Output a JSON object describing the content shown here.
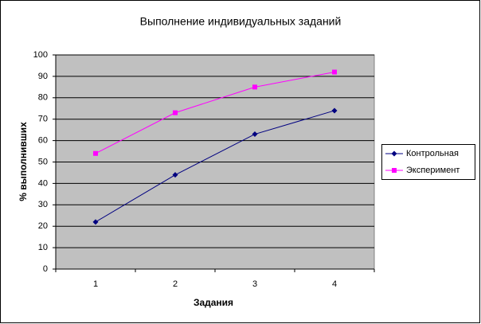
{
  "chart_data": {
    "type": "line",
    "title": "Выполнение индивидуальных заданий",
    "x_label": "Задания",
    "y_label": "% выполнивших",
    "categories": [
      "1",
      "2",
      "3",
      "4"
    ],
    "series": [
      {
        "name": "Контрольная",
        "color": "#000080",
        "marker": "diamond",
        "values": [
          22,
          44,
          63,
          74
        ]
      },
      {
        "name": "Эксперимент",
        "color": "#ff00ff",
        "marker": "square",
        "values": [
          54,
          73,
          85,
          92
        ]
      }
    ],
    "ylim": [
      0,
      100
    ],
    "yticks": [
      0,
      10,
      20,
      30,
      40,
      50,
      60,
      70,
      80,
      90,
      100
    ],
    "grid": true,
    "legend": "right"
  }
}
